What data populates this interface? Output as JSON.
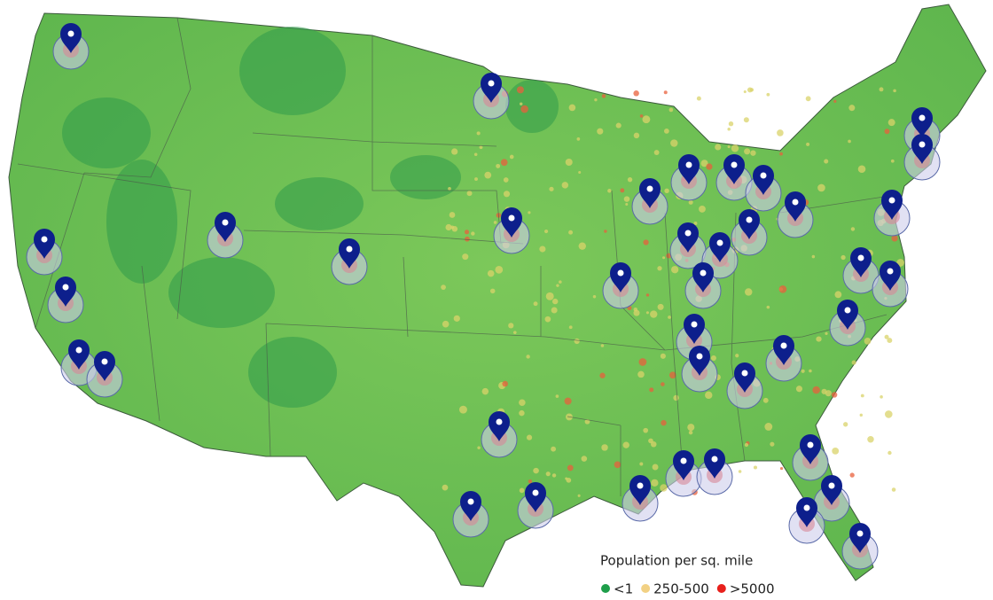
{
  "legend": {
    "title": "Population per sq. mile",
    "items": [
      {
        "label": "<1",
        "color": "#1e9e4a"
      },
      {
        "label": "250-500",
        "color": "#f2d184"
      },
      {
        "label": ">5000",
        "color": "#e8201c"
      }
    ]
  }
}
